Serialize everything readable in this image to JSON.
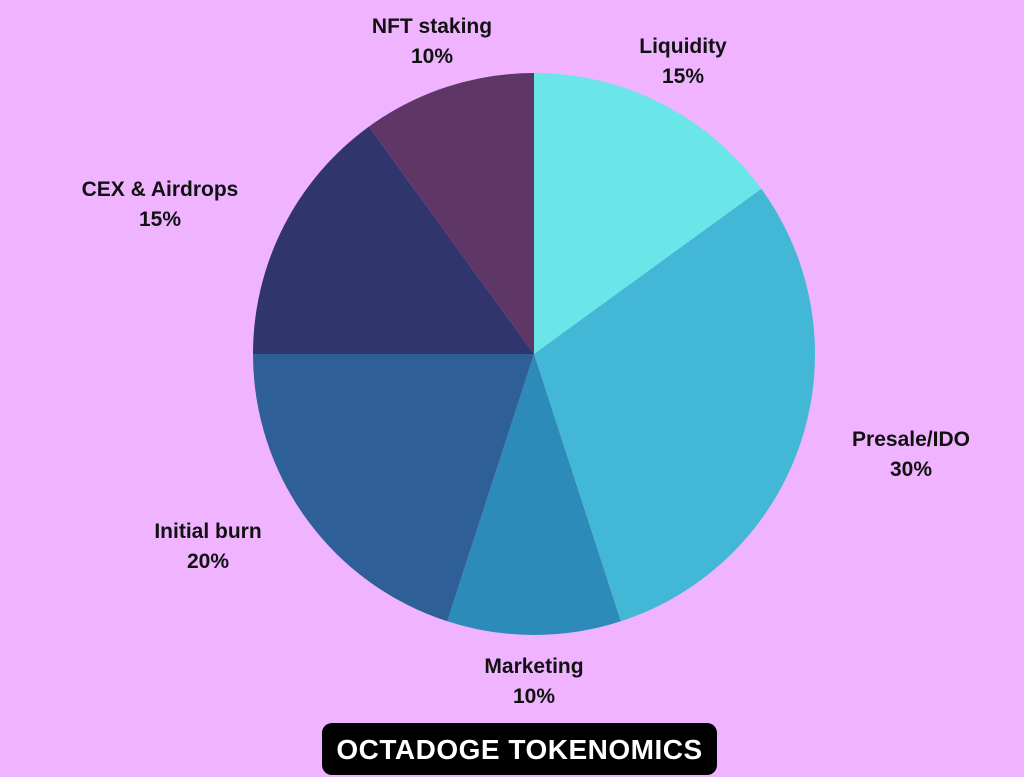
{
  "chart_data": {
    "type": "pie",
    "title": "OCTADOGE TOKENOMICS",
    "slices": [
      {
        "label": "Liquidity",
        "value": 15,
        "value_label": "15%",
        "color": "#6ae6e8"
      },
      {
        "label": "Presale/IDO",
        "value": 30,
        "value_label": "30%",
        "color": "#43b8d6"
      },
      {
        "label": "Marketing",
        "value": 10,
        "value_label": "10%",
        "color": "#2d8bba"
      },
      {
        "label": "Initial burn",
        "value": 20,
        "value_label": "20%",
        "color": "#2e5f97"
      },
      {
        "label": "CEX & Airdrops",
        "value": 15,
        "value_label": "15%",
        "color": "#31356e"
      },
      {
        "label": "NFT staking",
        "value": 10,
        "value_label": "10%",
        "color": "#5f3766"
      }
    ],
    "legend": "none"
  },
  "colors": {
    "background": "#f0b3ff",
    "title_box": "#000000",
    "title_text": "#ffffff"
  }
}
